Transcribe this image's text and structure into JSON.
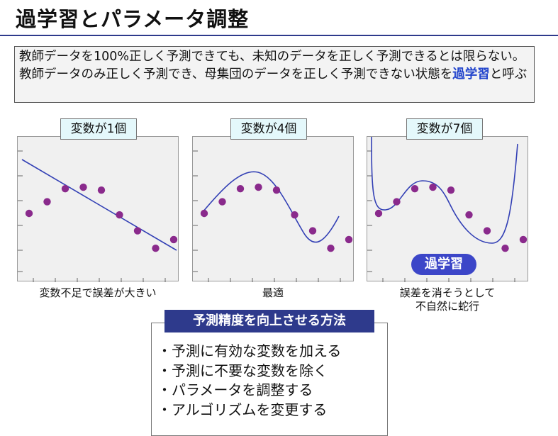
{
  "slide": {
    "title": "過学習とパラメータ調整",
    "intro_pre": "教師データを100%正しく予測できても、未知のデータを正しく予測できるとは限らない。教師データのみ正しく予測でき、母集団のデータを正しく予測できない状態を",
    "intro_highlight": "過学習",
    "intro_post": "と呼ぶ"
  },
  "chart_data": [
    {
      "type": "scatter",
      "title": "変数が1個",
      "caption": "変数不足で誤差が大きい",
      "fit": "linear",
      "x": [
        1,
        2,
        3,
        4,
        5,
        6,
        7,
        8,
        9
      ],
      "y": [
        4.0,
        4.8,
        5.7,
        5.8,
        5.6,
        3.9,
        2.8,
        1.6,
        2.2
      ]
    },
    {
      "type": "scatter",
      "title": "変数が4個",
      "caption": "最適",
      "fit": "smooth-curve",
      "x": [
        1,
        2,
        3,
        4,
        5,
        6,
        7,
        8,
        9
      ],
      "y": [
        4.0,
        4.8,
        5.7,
        5.8,
        5.6,
        3.9,
        2.8,
        1.6,
        2.2
      ]
    },
    {
      "type": "scatter",
      "title": "変数が7個",
      "caption": "誤差を消そうとして\n不自然に蛇行",
      "caption_line1": "誤差を消そうとして",
      "caption_line2": "不自然に蛇行",
      "fit": "overfit-curve",
      "badge": "過学習",
      "x": [
        1,
        2,
        3,
        4,
        5,
        6,
        7,
        8,
        9
      ],
      "y": [
        4.0,
        4.8,
        5.7,
        5.8,
        5.6,
        3.9,
        2.8,
        1.6,
        2.2
      ]
    }
  ],
  "methods": {
    "title": "予測精度を向上させる方法",
    "items": [
      "・予測に有効な変数を加える",
      "・予測に不要な変数を除く",
      "・パラメータを調整する",
      "・アルゴリズムを変更する"
    ]
  },
  "colors": {
    "accent": "#2e3a8c",
    "point": "#8a2a8c",
    "line": "#3340b5",
    "highlight": "#2244cc",
    "badge": "#3c46c8"
  }
}
